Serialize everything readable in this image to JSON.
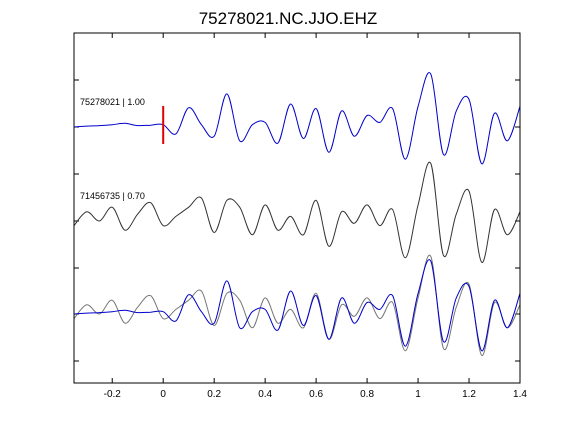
{
  "chart_data": {
    "type": "line",
    "title": "75278021.NC.JJO.EHZ",
    "xlabel": "",
    "ylabel": "",
    "xlim": [
      -0.35,
      1.4
    ],
    "xticks": [
      -0.2,
      0,
      0.2,
      0.4,
      0.6,
      0.8,
      1,
      1.2,
      1.4
    ],
    "xtick_labels": [
      "-0.2",
      "0",
      "0.2",
      "0.4",
      "0.6",
      "0.8",
      "1",
      "1.2",
      "1.4"
    ],
    "grid": false,
    "pick_marker": {
      "x": 0,
      "color": "#e00000"
    },
    "panels": [
      {
        "label": "75278021 | 1.00",
        "baseline": 0
      },
      {
        "label": "71456735 | 0.70",
        "baseline": 1
      },
      {
        "label": "",
        "baseline": 2
      }
    ],
    "x": [
      -0.35,
      -0.3,
      -0.25,
      -0.2,
      -0.15,
      -0.1,
      -0.05,
      0.0,
      0.05,
      0.1,
      0.15,
      0.2,
      0.25,
      0.3,
      0.35,
      0.4,
      0.45,
      0.5,
      0.55,
      0.6,
      0.65,
      0.7,
      0.75,
      0.8,
      0.85,
      0.9,
      0.95,
      1.0,
      1.05,
      1.1,
      1.15,
      1.2,
      1.25,
      1.3,
      1.35,
      1.4
    ],
    "series": [
      {
        "color": "#0000cc",
        "values": [
          0.0,
          0.02,
          0.03,
          0.05,
          0.08,
          0.03,
          0.04,
          0.05,
          -0.15,
          0.42,
          0.05,
          -0.2,
          0.72,
          -0.3,
          0.05,
          0.1,
          -0.35,
          0.5,
          -0.25,
          0.4,
          -0.55,
          0.35,
          -0.2,
          0.25,
          0.1,
          0.4,
          -0.7,
          0.45,
          1.15,
          -0.6,
          0.35,
          0.6,
          -0.8,
          0.3,
          -0.3,
          0.45
        ]
      },
      {
        "color": "#333333",
        "values": [
          -0.1,
          0.2,
          0.0,
          0.3,
          -0.2,
          0.15,
          0.4,
          -0.1,
          0.1,
          0.3,
          0.5,
          -0.25,
          0.45,
          0.3,
          -0.3,
          0.35,
          -0.2,
          0.1,
          -0.3,
          0.45,
          -0.55,
          0.2,
          -0.05,
          0.35,
          -0.1,
          0.25,
          -0.8,
          0.35,
          1.25,
          -0.75,
          0.15,
          0.65,
          -0.9,
          0.25,
          -0.3,
          0.2
        ]
      }
    ]
  }
}
